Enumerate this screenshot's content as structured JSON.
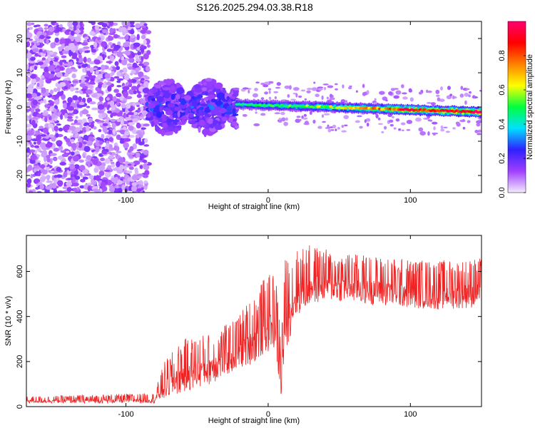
{
  "title": "S126.2025.294.03.38.R18",
  "chart_data": [
    {
      "type": "heatmap",
      "name": "spectrogram",
      "xlabel": "Height of straight line (km)",
      "ylabel": "Frequency (Hz)",
      "xlim": [
        -170,
        150
      ],
      "ylim": [
        -25,
        25
      ],
      "xticks": [
        -100,
        0,
        100
      ],
      "xtick_labels": [
        "-100",
        "0",
        "100"
      ],
      "yticks": [
        -20,
        -10,
        0,
        10,
        20
      ],
      "ytick_labels": [
        "-20",
        "-10",
        "0",
        "10",
        "20"
      ],
      "colorbar": {
        "label": "Normalized spectral amplitude",
        "range": [
          0,
          1
        ],
        "ticks": [
          0.0,
          0.2,
          0.4,
          0.6,
          0.8
        ],
        "tick_labels": [
          "0.0",
          "0.2",
          "0.4",
          "0.6",
          "0.8"
        ],
        "colors": [
          "#f4ecff",
          "#a040ff",
          "#3020ff",
          "#00e0ff",
          "#00ff40",
          "#ffff00",
          "#ff8000",
          "#ff0000",
          "#ff0070"
        ]
      },
      "regions": [
        {
          "x_range": [
            -170,
            -84
          ],
          "f_range": [
            -25,
            25
          ],
          "amplitude": 0.1,
          "description": "broadband noise"
        },
        {
          "x_range": [
            -84,
            -22
          ],
          "f_range": [
            -7,
            8
          ],
          "amplitude": 0.25,
          "description": "diffuse signal"
        },
        {
          "x_range": [
            -22,
            150
          ],
          "center_freq": [
            [
              -22,
              0.8
            ],
            [
              40,
              0
            ],
            [
              100,
              -0.8
            ],
            [
              150,
              -1.5
            ]
          ],
          "amplitude_profile": [
            [
              -22,
              0.45
            ],
            [
              40,
              0.55
            ],
            [
              80,
              0.75
            ],
            [
              100,
              0.9
            ],
            [
              120,
              0.85
            ],
            [
              150,
              1.0
            ]
          ],
          "description": "carrier line"
        }
      ]
    },
    {
      "type": "line",
      "name": "snr",
      "xlabel": "Height of straight line (km)",
      "ylabel": "SNR (10 * v/v)",
      "xlim": [
        -170,
        150
      ],
      "ylim": [
        0,
        760
      ],
      "xticks": [
        -100,
        0,
        100
      ],
      "xtick_labels": [
        "-100",
        "0",
        "100"
      ],
      "yticks": [
        0,
        200,
        400,
        600
      ],
      "ytick_labels": [
        "0",
        "200",
        "400",
        "600"
      ],
      "color": "#ee2222",
      "envelope": {
        "x": [
          -170,
          -80,
          -73,
          -60,
          -40,
          -25,
          -15,
          -8,
          -3,
          5,
          9,
          12,
          20,
          30,
          40,
          60,
          90,
          120,
          150
        ],
        "base": [
          15,
          15,
          30,
          60,
          100,
          150,
          180,
          200,
          230,
          260,
          10,
          240,
          400,
          450,
          470,
          460,
          440,
          430,
          440
        ],
        "peak": [
          45,
          60,
          200,
          300,
          330,
          380,
          460,
          520,
          570,
          600,
          350,
          660,
          700,
          720,
          700,
          680,
          660,
          650,
          660
        ]
      }
    }
  ]
}
